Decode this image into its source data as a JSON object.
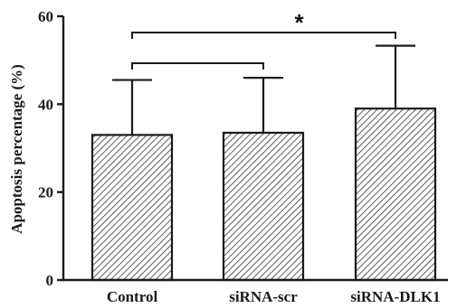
{
  "chart_data": {
    "type": "bar",
    "categories": [
      "Control",
      "siRNA-scr",
      "siRNA-DLK1"
    ],
    "series": [
      {
        "values": [
          33,
          33.5,
          39
        ],
        "error": [
          12.5,
          12.5,
          14.3
        ]
      }
    ],
    "title": "",
    "xlabel": "",
    "ylabel": "Apoptosis percentage (%)",
    "ylim": [
      0,
      60
    ],
    "yticks": [
      0,
      20,
      40,
      60
    ],
    "grid": false,
    "bar_fill": "diagonal-hatch",
    "bar_color": "#333333",
    "significance": [
      {
        "from": 0,
        "to": 1,
        "label": ""
      },
      {
        "from": 0,
        "to": 2,
        "label": "*"
      }
    ]
  }
}
